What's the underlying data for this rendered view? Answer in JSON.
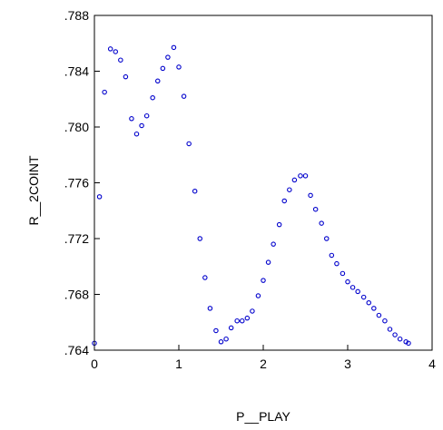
{
  "chart_data": {
    "type": "scatter",
    "xlabel": "P__PLAY",
    "ylabel": "R__2COINT",
    "xlim": [
      0,
      4
    ],
    "ylim": [
      0.764,
      0.788
    ],
    "x_ticks": [
      {
        "value": 0,
        "label": "0"
      },
      {
        "value": 1,
        "label": "1"
      },
      {
        "value": 2,
        "label": "2"
      },
      {
        "value": 3,
        "label": "3"
      },
      {
        "value": 4,
        "label": "4"
      }
    ],
    "y_ticks": [
      {
        "value": 0.764,
        "label": ".764"
      },
      {
        "value": 0.768,
        "label": ".768"
      },
      {
        "value": 0.772,
        "label": ".772"
      },
      {
        "value": 0.776,
        "label": ".776"
      },
      {
        "value": 0.78,
        "label": ".780"
      },
      {
        "value": 0.784,
        "label": ".784"
      },
      {
        "value": 0.788,
        "label": ".788"
      }
    ],
    "grid": false,
    "marker": "open-circle",
    "marker_color": "#0000cc",
    "points": [
      [
        0.0,
        0.7645
      ],
      [
        0.06,
        0.775
      ],
      [
        0.12,
        0.7825
      ],
      [
        0.19,
        0.7856
      ],
      [
        0.25,
        0.7854
      ],
      [
        0.31,
        0.7848
      ],
      [
        0.37,
        0.7836
      ],
      [
        0.44,
        0.7806
      ],
      [
        0.5,
        0.7795
      ],
      [
        0.56,
        0.7801
      ],
      [
        0.62,
        0.7808
      ],
      [
        0.69,
        0.7821
      ],
      [
        0.75,
        0.7833
      ],
      [
        0.81,
        0.7842
      ],
      [
        0.87,
        0.785
      ],
      [
        0.94,
        0.7857
      ],
      [
        1.0,
        0.7843
      ],
      [
        1.06,
        0.7822
      ],
      [
        1.12,
        0.7788
      ],
      [
        1.19,
        0.7754
      ],
      [
        1.25,
        0.772
      ],
      [
        1.31,
        0.7692
      ],
      [
        1.37,
        0.767
      ],
      [
        1.44,
        0.7654
      ],
      [
        1.5,
        0.7646
      ],
      [
        1.56,
        0.7648
      ],
      [
        1.62,
        0.7656
      ],
      [
        1.69,
        0.7661
      ],
      [
        1.75,
        0.7661
      ],
      [
        1.81,
        0.7663
      ],
      [
        1.87,
        0.7668
      ],
      [
        1.94,
        0.7679
      ],
      [
        2.0,
        0.769
      ],
      [
        2.06,
        0.7703
      ],
      [
        2.12,
        0.7716
      ],
      [
        2.19,
        0.773
      ],
      [
        2.25,
        0.7747
      ],
      [
        2.31,
        0.7755
      ],
      [
        2.37,
        0.7762
      ],
      [
        2.44,
        0.7765
      ],
      [
        2.5,
        0.7765
      ],
      [
        2.56,
        0.7751
      ],
      [
        2.62,
        0.7741
      ],
      [
        2.69,
        0.7731
      ],
      [
        2.75,
        0.772
      ],
      [
        2.81,
        0.7708
      ],
      [
        2.87,
        0.7702
      ],
      [
        2.94,
        0.7695
      ],
      [
        3.0,
        0.7689
      ],
      [
        3.06,
        0.7685
      ],
      [
        3.12,
        0.7682
      ],
      [
        3.19,
        0.7678
      ],
      [
        3.25,
        0.7674
      ],
      [
        3.31,
        0.767
      ],
      [
        3.37,
        0.7665
      ],
      [
        3.44,
        0.7661
      ],
      [
        3.5,
        0.7655
      ],
      [
        3.56,
        0.7651
      ],
      [
        3.62,
        0.7648
      ],
      [
        3.69,
        0.7646
      ],
      [
        3.72,
        0.7645
      ]
    ]
  }
}
